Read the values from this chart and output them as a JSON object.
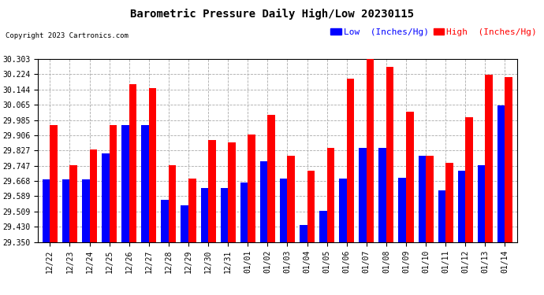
{
  "title": "Barometric Pressure Daily High/Low 20230115",
  "copyright": "Copyright 2023 Cartronics.com",
  "legend_low": "Low  (Inches/Hg)",
  "legend_high": "High  (Inches/Hg)",
  "dates": [
    "12/22",
    "12/23",
    "12/24",
    "12/25",
    "12/26",
    "12/27",
    "12/28",
    "12/29",
    "12/30",
    "12/31",
    "01/01",
    "01/02",
    "01/03",
    "01/04",
    "01/05",
    "01/06",
    "01/07",
    "01/08",
    "01/09",
    "01/10",
    "01/11",
    "01/12",
    "01/13",
    "01/14"
  ],
  "high": [
    29.96,
    29.75,
    29.83,
    29.96,
    30.17,
    30.15,
    29.75,
    29.68,
    29.88,
    29.87,
    29.91,
    30.01,
    29.8,
    29.72,
    29.84,
    30.2,
    30.31,
    30.26,
    30.03,
    29.8,
    29.76,
    30.0,
    30.22,
    30.21
  ],
  "low": [
    29.675,
    29.675,
    29.675,
    29.81,
    29.96,
    29.96,
    29.57,
    29.54,
    29.63,
    29.63,
    29.66,
    29.77,
    29.68,
    29.44,
    29.51,
    29.68,
    29.84,
    29.84,
    29.685,
    29.8,
    29.62,
    29.72,
    29.75,
    30.06
  ],
  "ylim_min": 29.35,
  "ylim_max": 30.303,
  "yticks": [
    29.35,
    29.43,
    29.509,
    29.589,
    29.668,
    29.747,
    29.827,
    29.906,
    29.985,
    30.065,
    30.144,
    30.224,
    30.303
  ],
  "bar_width": 0.38,
  "color_high": "#FF0000",
  "color_low": "#0000FF",
  "bg_color": "#FFFFFF",
  "grid_color": "#AAAAAA",
  "title_fontsize": 10,
  "tick_fontsize": 7,
  "legend_fontsize": 8,
  "copyright_fontsize": 6.5
}
